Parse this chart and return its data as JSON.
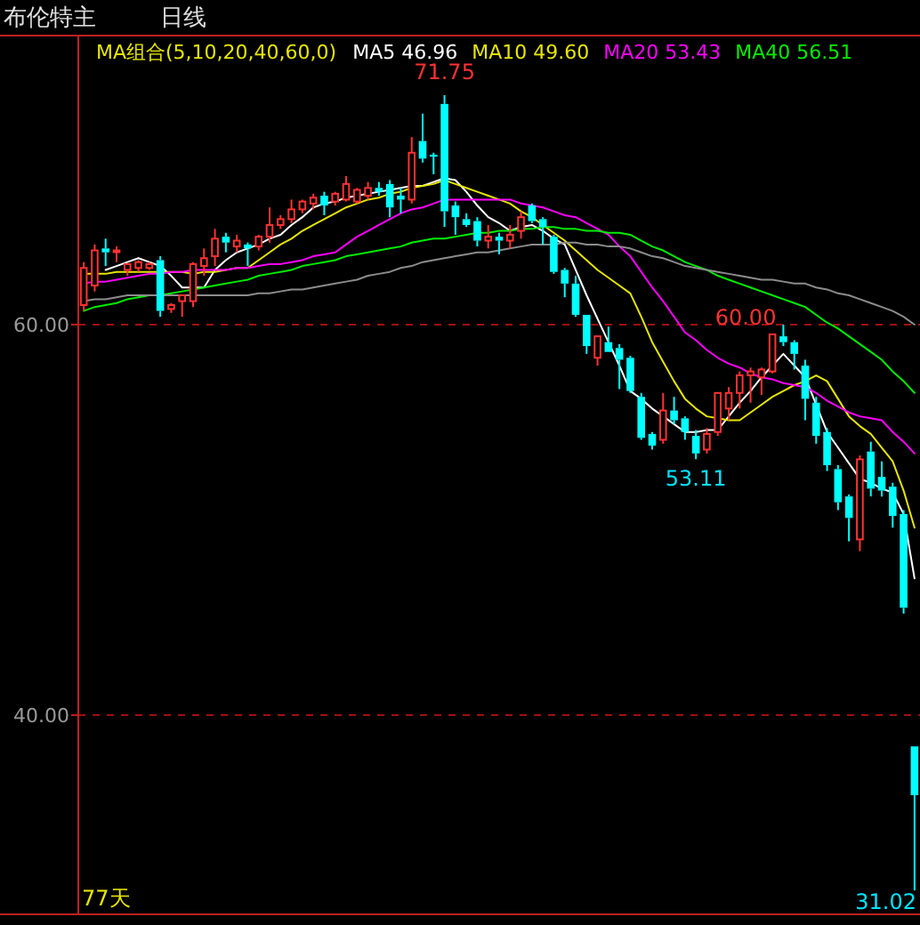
{
  "chart_data": {
    "type": "candlestick",
    "title": "布伦特主",
    "subtitle": "日线",
    "legend_title": "MA组合(5,10,20,40,60,0)",
    "legend": "top",
    "grid": "y",
    "tick_labels": "y",
    "categories": [
      null,
      null,
      null,
      null,
      null,
      null,
      null,
      null,
      null,
      null,
      null,
      null,
      null,
      null,
      null,
      null,
      null,
      null,
      null,
      null,
      null,
      null,
      null,
      null,
      null,
      null,
      null,
      null,
      null,
      null,
      null,
      null,
      null,
      null,
      null,
      null,
      null,
      null,
      null,
      null,
      null,
      null,
      null,
      null,
      null,
      null,
      null,
      null,
      null,
      null,
      null,
      null,
      null,
      null,
      null,
      null,
      null,
      null,
      null,
      null,
      null,
      null,
      null,
      null,
      null,
      null,
      null,
      null,
      null,
      null,
      null,
      null,
      null,
      null,
      null,
      null,
      null
    ],
    "ylim": [
      29.8,
      74.8
    ],
    "yticks": [
      {
        "value": 60,
        "label": "60.00"
      },
      {
        "value": 40,
        "label": "40.00"
      }
    ],
    "ohlc": [
      [
        61.0,
        63.2,
        60.7,
        62.9
      ],
      [
        62.0,
        64.1,
        61.7,
        63.8
      ],
      [
        63.9,
        64.4,
        63.0,
        63.7
      ],
      [
        63.8,
        64.0,
        63.2,
        63.8
      ],
      [
        62.8,
        63.1,
        62.5,
        63.1
      ],
      [
        62.9,
        63.3,
        62.7,
        63.2
      ],
      [
        62.9,
        63.2,
        62.8,
        63.1
      ],
      [
        63.3,
        63.5,
        60.4,
        60.7
      ],
      [
        60.8,
        61.1,
        60.6,
        61.0
      ],
      [
        61.2,
        61.5,
        60.4,
        61.5
      ],
      [
        61.2,
        63.2,
        60.9,
        63.1
      ],
      [
        63.0,
        63.9,
        62.5,
        63.4
      ],
      [
        63.5,
        64.9,
        63.0,
        64.4
      ],
      [
        64.5,
        64.7,
        63.7,
        64.2
      ],
      [
        64.0,
        64.6,
        63.7,
        64.3
      ],
      [
        64.1,
        64.2,
        63.0,
        63.9
      ],
      [
        64.0,
        64.6,
        63.8,
        64.5
      ],
      [
        64.5,
        66.0,
        64.2,
        65.1
      ],
      [
        65.1,
        65.6,
        64.9,
        65.4
      ],
      [
        65.4,
        66.4,
        65.2,
        65.9
      ],
      [
        65.9,
        66.4,
        65.7,
        66.3
      ],
      [
        66.2,
        66.7,
        65.9,
        66.5
      ],
      [
        66.6,
        66.8,
        65.6,
        66.1
      ],
      [
        66.3,
        66.8,
        66.1,
        66.7
      ],
      [
        66.4,
        67.6,
        66.3,
        67.2
      ],
      [
        66.3,
        67.0,
        66.2,
        66.9
      ],
      [
        66.6,
        67.3,
        66.4,
        67.0
      ],
      [
        67.0,
        67.3,
        66.6,
        66.8
      ],
      [
        67.2,
        67.4,
        65.5,
        66.0
      ],
      [
        66.6,
        67.0,
        65.7,
        66.4
      ],
      [
        66.4,
        69.6,
        66.2,
        68.8
      ],
      [
        69.4,
        70.8,
        68.3,
        68.5
      ],
      [
        68.7,
        68.8,
        67.7,
        68.6
      ],
      [
        71.3,
        71.75,
        65.0,
        65.8
      ],
      [
        66.1,
        66.3,
        64.6,
        65.5
      ],
      [
        65.4,
        65.7,
        65.0,
        65.1
      ],
      [
        65.3,
        65.5,
        64.0,
        64.3
      ],
      [
        64.3,
        65.1,
        63.9,
        64.5
      ],
      [
        64.5,
        64.7,
        63.6,
        64.3
      ],
      [
        64.3,
        65.1,
        63.9,
        64.6
      ],
      [
        64.8,
        65.8,
        64.4,
        65.5
      ],
      [
        66.1,
        66.2,
        65.2,
        65.3
      ],
      [
        65.4,
        65.5,
        64.1,
        65.0
      ],
      [
        64.5,
        64.6,
        62.6,
        62.7
      ],
      [
        62.8,
        62.9,
        61.4,
        62.1
      ],
      [
        62.1,
        62.5,
        60.4,
        60.5
      ],
      [
        60.5,
        60.5,
        58.5,
        58.9
      ],
      [
        58.3,
        59.4,
        57.9,
        59.4
      ],
      [
        59.1,
        59.9,
        58.6,
        58.6
      ],
      [
        58.8,
        59.0,
        56.7,
        58.2
      ],
      [
        58.3,
        58.4,
        56.5,
        56.6
      ],
      [
        56.3,
        56.5,
        54.1,
        54.2
      ],
      [
        54.4,
        54.5,
        53.6,
        53.8
      ],
      [
        54.1,
        56.5,
        53.9,
        55.6
      ],
      [
        55.6,
        56.3,
        54.9,
        55.1
      ],
      [
        55.2,
        55.3,
        54.1,
        54.5
      ],
      [
        54.3,
        54.6,
        53.11,
        53.4
      ],
      [
        53.6,
        54.7,
        53.4,
        54.4
      ],
      [
        54.5,
        56.5,
        54.3,
        56.5
      ],
      [
        55.7,
        56.8,
        55.1,
        56.5
      ],
      [
        56.5,
        57.6,
        55.7,
        57.4
      ],
      [
        57.4,
        57.8,
        56.0,
        57.6
      ],
      [
        57.3,
        57.8,
        56.4,
        57.7
      ],
      [
        57.6,
        59.5,
        57.5,
        59.5
      ],
      [
        59.4,
        60.0,
        58.9,
        59.1
      ],
      [
        59.1,
        59.2,
        57.7,
        58.5
      ],
      [
        57.9,
        58.2,
        55.1,
        56.2
      ],
      [
        56.0,
        56.3,
        53.9,
        54.3
      ],
      [
        54.5,
        54.7,
        52.5,
        52.8
      ],
      [
        52.6,
        52.8,
        50.5,
        50.9
      ],
      [
        51.2,
        51.3,
        48.9,
        50.1
      ],
      [
        49.0,
        53.3,
        48.4,
        53.1
      ],
      [
        53.5,
        54.0,
        51.2,
        51.6
      ],
      [
        52.2,
        53.0,
        51.2,
        51.5
      ],
      [
        51.7,
        51.9,
        49.6,
        50.2
      ],
      [
        50.3,
        50.5,
        45.2,
        45.5
      ],
      [
        38.4,
        38.4,
        31.02,
        35.9
      ]
    ],
    "series": [
      {
        "type": "line",
        "name": "MA5 46.96",
        "color": "#ffffff",
        "values": [
          null,
          null,
          62.8,
          63.0,
          63.2,
          63.4,
          63.2,
          63.0,
          62.5,
          61.9,
          61.9,
          61.9,
          62.8,
          63.3,
          63.7,
          63.9,
          64.1,
          64.4,
          64.6,
          65.1,
          65.5,
          66.0,
          66.2,
          66.3,
          66.5,
          66.6,
          66.7,
          66.8,
          66.9,
          67.0,
          67.1,
          67.1,
          67.3,
          67.5,
          67.4,
          66.8,
          66.1,
          65.5,
          65.2,
          64.8,
          65.0,
          65.1,
          64.8,
          64.4,
          64.1,
          62.8,
          61.5,
          60.3,
          59.1,
          57.9,
          56.6,
          56.2,
          55.7,
          55.3,
          54.9,
          54.5,
          54.5,
          54.6,
          54.6,
          55.3,
          56.0,
          56.6,
          57.3,
          57.9,
          58.5,
          57.9,
          57.3,
          55.9,
          54.5,
          53.7,
          52.9,
          52.1,
          51.9,
          51.6,
          51.4,
          50.3,
          47.0
        ]
      },
      {
        "type": "line",
        "name": "MA10 49.60",
        "color": "#e6e600",
        "values": [
          62.6,
          62.6,
          62.6,
          62.7,
          62.7,
          62.7,
          62.7,
          62.7,
          62.7,
          62.7,
          62.6,
          62.7,
          62.7,
          62.8,
          62.9,
          62.9,
          63.3,
          63.7,
          64.1,
          64.4,
          64.8,
          65.1,
          65.4,
          65.7,
          66.0,
          66.2,
          66.4,
          66.5,
          66.7,
          66.8,
          67.0,
          67.1,
          67.2,
          67.4,
          67.2,
          67.0,
          66.8,
          66.6,
          66.4,
          66.2,
          65.8,
          65.5,
          65.1,
          64.7,
          64.3,
          63.8,
          63.3,
          62.8,
          62.4,
          62.0,
          61.6,
          60.4,
          59.1,
          58.1,
          57.1,
          56.2,
          55.7,
          55.3,
          55.2,
          55.1,
          55.1,
          55.5,
          55.9,
          56.3,
          56.6,
          56.9,
          57.1,
          57.4,
          57.1,
          56.2,
          55.3,
          54.8,
          54.4,
          53.7,
          53.0,
          51.5,
          49.6
        ]
      },
      {
        "type": "line",
        "name": "MA20 53.43",
        "color": "#ff00ff",
        "values": [
          62.1,
          62.2,
          62.2,
          62.3,
          62.4,
          62.5,
          62.6,
          62.6,
          62.7,
          62.7,
          62.8,
          62.8,
          62.8,
          62.8,
          62.9,
          62.9,
          63.0,
          63.1,
          63.1,
          63.2,
          63.3,
          63.5,
          63.6,
          63.7,
          64.1,
          64.5,
          64.8,
          65.1,
          65.4,
          65.7,
          65.9,
          66.0,
          66.2,
          66.4,
          66.4,
          66.4,
          66.4,
          66.4,
          66.4,
          66.4,
          66.2,
          66.1,
          66.0,
          65.8,
          65.6,
          65.5,
          65.2,
          64.9,
          64.6,
          64.0,
          63.5,
          62.7,
          61.9,
          61.2,
          60.4,
          59.6,
          59.2,
          58.7,
          58.3,
          58.0,
          57.8,
          57.5,
          57.3,
          57.2,
          57.0,
          56.9,
          56.8,
          56.5,
          56.1,
          55.8,
          55.5,
          55.3,
          55.2,
          55.1,
          54.5,
          54.0,
          53.4
        ]
      },
      {
        "type": "line",
        "name": "MA40 56.51",
        "color": "#00ee00",
        "values": [
          60.7,
          60.9,
          61.0,
          61.1,
          61.3,
          61.4,
          61.5,
          61.5,
          61.6,
          61.7,
          61.8,
          61.9,
          62.0,
          62.1,
          62.2,
          62.3,
          62.5,
          62.6,
          62.7,
          62.8,
          63.0,
          63.1,
          63.2,
          63.3,
          63.5,
          63.6,
          63.7,
          63.8,
          63.9,
          64.0,
          64.2,
          64.3,
          64.4,
          64.4,
          64.5,
          64.6,
          64.7,
          64.7,
          64.8,
          64.8,
          64.9,
          64.9,
          65.0,
          65.0,
          64.9,
          64.9,
          64.8,
          64.8,
          64.7,
          64.7,
          64.6,
          64.3,
          64.0,
          63.8,
          63.5,
          63.2,
          63.0,
          62.8,
          62.5,
          62.3,
          62.1,
          61.9,
          61.7,
          61.5,
          61.3,
          61.1,
          60.9,
          60.5,
          60.1,
          59.8,
          59.4,
          59.0,
          58.6,
          58.2,
          57.6,
          57.1,
          56.5
        ]
      },
      {
        "type": "line",
        "color": "#8c8c8c",
        "values": [
          61.2,
          61.3,
          61.3,
          61.4,
          61.5,
          61.5,
          61.5,
          61.5,
          61.5,
          61.5,
          61.5,
          61.5,
          61.5,
          61.5,
          61.5,
          61.5,
          61.6,
          61.6,
          61.7,
          61.8,
          61.8,
          61.9,
          62.0,
          62.1,
          62.2,
          62.3,
          62.5,
          62.6,
          62.7,
          62.9,
          63.0,
          63.2,
          63.3,
          63.4,
          63.5,
          63.6,
          63.7,
          63.7,
          63.8,
          63.9,
          64.0,
          64.1,
          64.1,
          64.1,
          64.2,
          64.2,
          64.1,
          64.1,
          64.0,
          64.0,
          63.9,
          63.7,
          63.5,
          63.4,
          63.2,
          63.0,
          62.9,
          62.8,
          62.7,
          62.6,
          62.5,
          62.4,
          62.3,
          62.3,
          62.2,
          62.1,
          62.1,
          61.9,
          61.8,
          61.6,
          61.5,
          61.3,
          61.1,
          60.9,
          60.7,
          60.4,
          60.0
        ]
      }
    ],
    "annotations": [
      "71.75",
      "60.00",
      "53.11",
      "31.02",
      "77天"
    ]
  }
}
